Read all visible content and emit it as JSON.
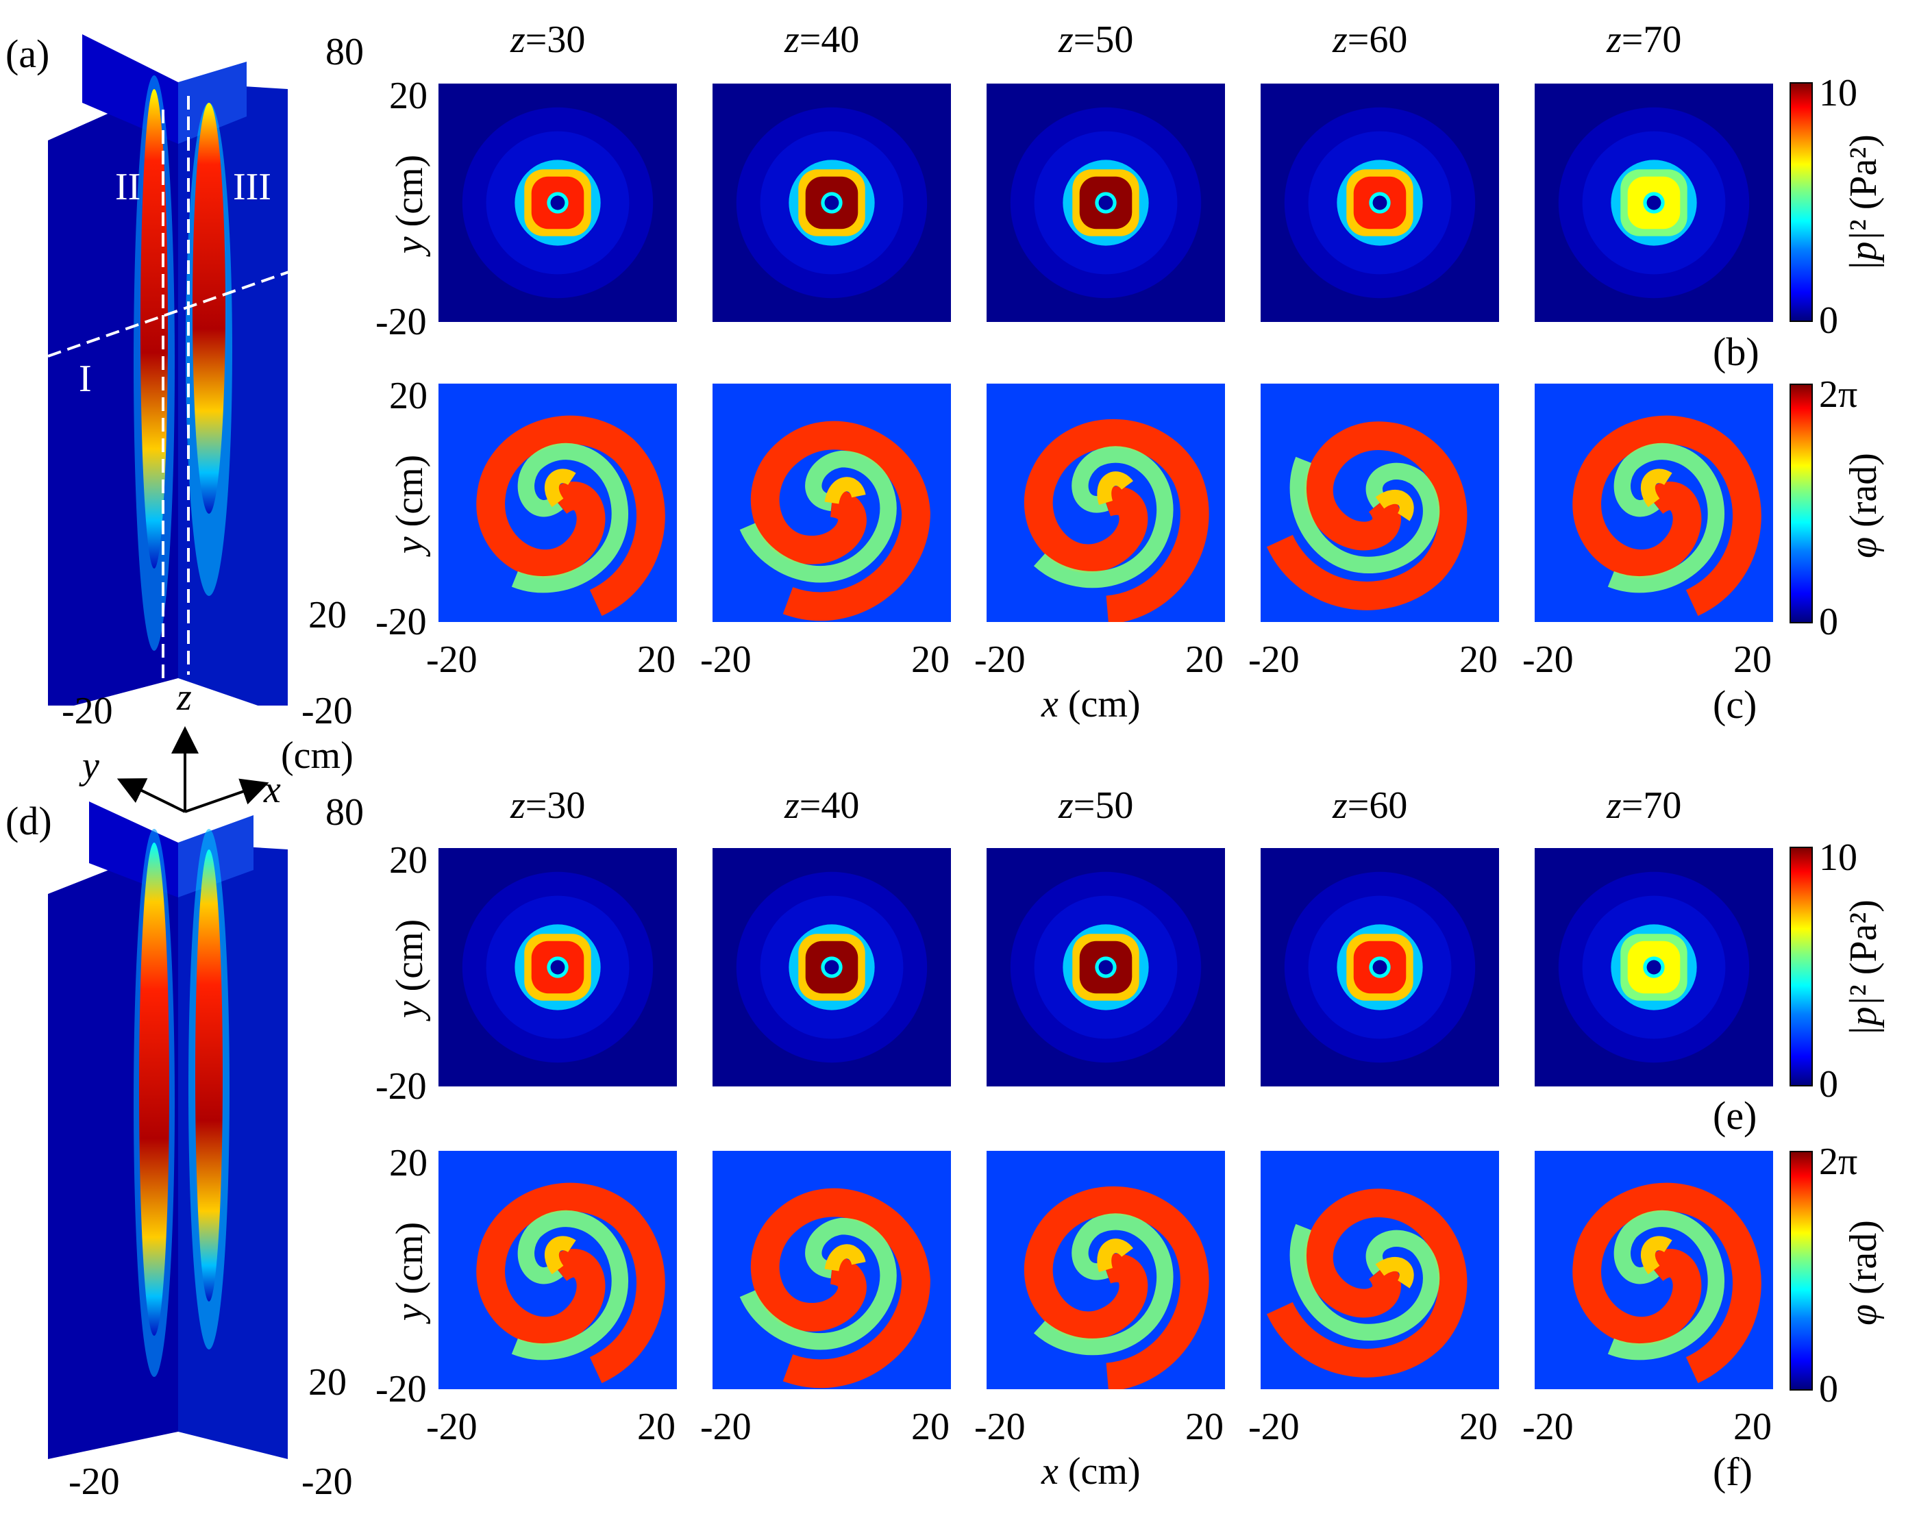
{
  "panel_labels": {
    "a": "(a)",
    "b": "(b)",
    "c": "(c)",
    "d": "(d)",
    "e": "(e)",
    "f": "(f)"
  },
  "z_values": [
    "z=30",
    "z=40",
    "z=50",
    "z=60",
    "z=70"
  ],
  "z_prefix": "z",
  "z_numbers": [
    "=30",
    "=40",
    "=50",
    "=60",
    "=70"
  ],
  "axes": {
    "y_label_var": "y",
    "y_label_unit": " (cm)",
    "x_label_var": "x",
    "x_label_unit": " (cm)",
    "tick_min": "-20",
    "tick_max": "20"
  },
  "colorbars": {
    "intensity": {
      "max": "10",
      "min": "0",
      "label": "|p|² (Pa²)",
      "label_var": "|p|",
      "label_rest": "² (Pa²)"
    },
    "phase": {
      "max": "2π",
      "min": "0",
      "label_var": "φ",
      "label_rest": " (rad)"
    }
  },
  "view3d": {
    "z_top": "80",
    "z_mid": "20",
    "x_end": "-20",
    "y_end": "-20",
    "unit": "(cm)",
    "axis_x": "x",
    "axis_y": "y",
    "axis_z": "z",
    "region_labels": [
      "I",
      "II",
      "III"
    ]
  },
  "colors": {
    "jet_low": "#00007f",
    "jet_mid": "#00ffff",
    "jet_high": "#7f0000"
  }
}
